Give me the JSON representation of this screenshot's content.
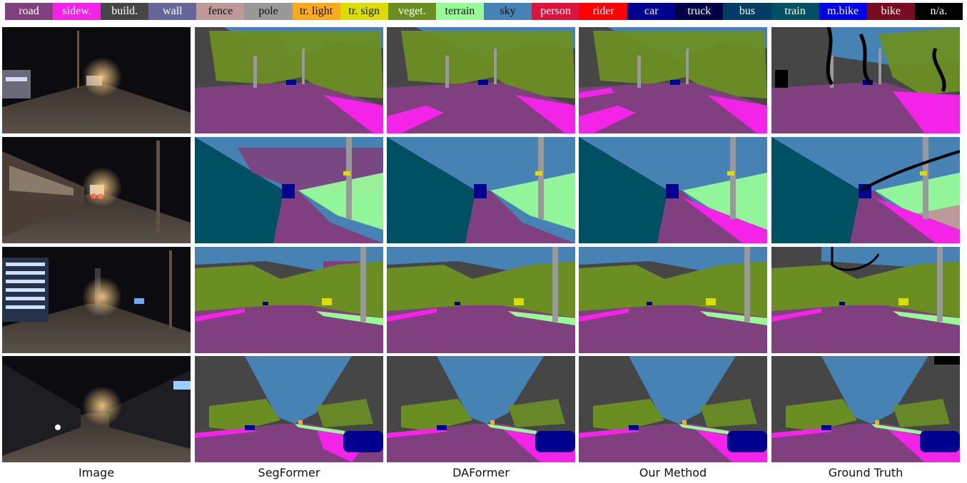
{
  "legend": [
    {
      "label": "road",
      "color": "#804080",
      "text_color": "#ffffff"
    },
    {
      "label": "sidew.",
      "color": "#f423e8",
      "text_color": "#ffffff"
    },
    {
      "label": "build.",
      "color": "#464646",
      "text_color": "#ffffff"
    },
    {
      "label": "wall",
      "color": "#66669c",
      "text_color": "#ffffff"
    },
    {
      "label": "fence",
      "color": "#be9999",
      "text_color": "#111111"
    },
    {
      "label": "pole",
      "color": "#999999",
      "text_color": "#111111"
    },
    {
      "label": "tr. light",
      "color": "#faaa1e",
      "text_color": "#111111"
    },
    {
      "label": "tr. sign",
      "color": "#dcdc00",
      "text_color": "#111111"
    },
    {
      "label": "veget.",
      "color": "#6b8e23",
      "text_color": "#ffffff"
    },
    {
      "label": "terrain",
      "color": "#98fb98",
      "text_color": "#111111"
    },
    {
      "label": "sky",
      "color": "#4682b4",
      "text_color": "#111111"
    },
    {
      "label": "person",
      "color": "#dc143c",
      "text_color": "#ffffff"
    },
    {
      "label": "rider",
      "color": "#ff0000",
      "text_color": "#ffffff"
    },
    {
      "label": "car",
      "color": "#00008e",
      "text_color": "#ffffff"
    },
    {
      "label": "truck",
      "color": "#000046",
      "text_color": "#ffffff"
    },
    {
      "label": "bus",
      "color": "#003c64",
      "text_color": "#ffffff"
    },
    {
      "label": "train",
      "color": "#005064",
      "text_color": "#ffffff"
    },
    {
      "label": "m.bike",
      "color": "#0000e6",
      "text_color": "#ffffff"
    },
    {
      "label": "bike",
      "color": "#770b20",
      "text_color": "#ffffff"
    },
    {
      "label": "n/a.",
      "color": "#000000",
      "text_color": "#ffffff"
    }
  ],
  "columns": [
    "Image",
    "SegFormer",
    "DAFormer",
    "Our Method",
    "Ground Truth"
  ],
  "scene_count": 4
}
